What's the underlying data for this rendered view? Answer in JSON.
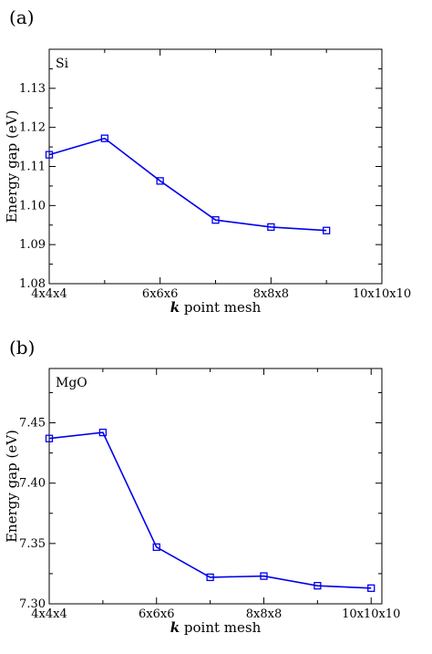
{
  "chart_data": [
    {
      "type": "line",
      "panel_label": "(a)",
      "inner_label": "Si",
      "xlabel_bold": "k",
      "xlabel_rest": " point mesh",
      "ylabel": "Energy gap (eV)",
      "x_tick_labels": [
        "4x4x4",
        "6x6x6",
        "8x8x8",
        "10x10x10"
      ],
      "x_tick_values": [
        4,
        6,
        8,
        10
      ],
      "xlim": [
        4,
        10
      ],
      "y_tick_labels": [
        "1.08",
        "1.09",
        "1.10",
        "1.11",
        "1.12",
        "1.13"
      ],
      "y_tick_values": [
        1.08,
        1.09,
        1.1,
        1.11,
        1.12,
        1.13
      ],
      "ylim": [
        1.08,
        1.14
      ],
      "color": "#0000ee",
      "series": [
        {
          "x": [
            4,
            5,
            6,
            7,
            8,
            9
          ],
          "y": [
            1.113,
            1.1172,
            1.1063,
            1.0963,
            1.0945,
            1.0936
          ]
        }
      ]
    },
    {
      "type": "line",
      "panel_label": "(b)",
      "inner_label": "MgO",
      "xlabel_bold": "k",
      "xlabel_rest": " point mesh",
      "ylabel": "Energy gap (eV)",
      "x_tick_labels": [
        "4x4x4",
        "6x6x6",
        "8x8x8",
        "10x10x10"
      ],
      "x_tick_values": [
        4,
        6,
        8,
        10
      ],
      "xlim": [
        4,
        10.2
      ],
      "y_tick_labels": [
        "7.30",
        "7.35",
        "7.40",
        "7.45"
      ],
      "y_tick_values": [
        7.3,
        7.35,
        7.4,
        7.45
      ],
      "ylim": [
        7.3,
        7.495
      ],
      "color": "#0000ee",
      "series": [
        {
          "x": [
            4,
            5,
            6,
            7,
            8,
            9,
            10
          ],
          "y": [
            7.437,
            7.442,
            7.347,
            7.322,
            7.323,
            7.315,
            7.313
          ]
        }
      ]
    }
  ]
}
